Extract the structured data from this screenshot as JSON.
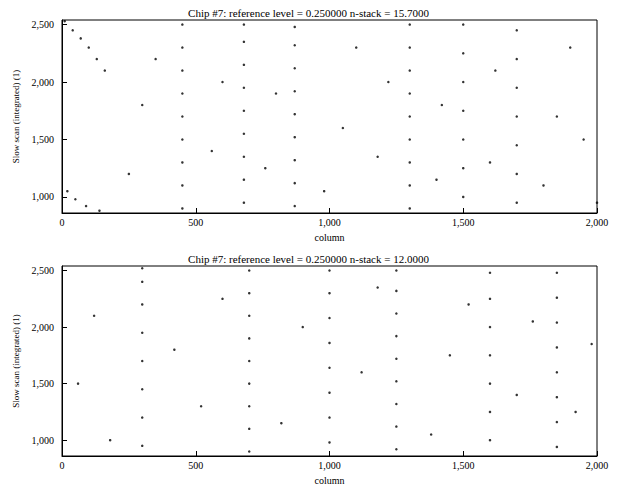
{
  "chart_data": [
    {
      "type": "scatter",
      "title": "Chip #7: reference level = 0.250000 n-stack = 15.7000",
      "x_label": "column",
      "y_label": "Slow scan (integrated) (1)",
      "color": "#000000",
      "marker": "dot",
      "grid": false,
      "xlim": [
        0,
        2000
      ],
      "xticks": [
        0,
        500,
        1000,
        1500,
        2000
      ],
      "ylim": [
        860,
        2540
      ],
      "yticks": [
        1000,
        1500,
        2000,
        2500
      ],
      "x": [
        10,
        40,
        70,
        100,
        130,
        160,
        20,
        50,
        90,
        140,
        450,
        450,
        450,
        450,
        450,
        450,
        450,
        450,
        450,
        680,
        680,
        680,
        680,
        680,
        680,
        680,
        680,
        680,
        870,
        870,
        870,
        870,
        870,
        870,
        870,
        870,
        870,
        1300,
        1300,
        1300,
        1300,
        1300,
        1300,
        1300,
        1300,
        1300,
        1500,
        1500,
        1500,
        1500,
        1500,
        1500,
        1500,
        1700,
        1700,
        1700,
        1700,
        1700,
        1700,
        1700,
        250,
        300,
        350,
        560,
        600,
        760,
        800,
        980,
        1050,
        1100,
        1180,
        1220,
        1400,
        1420,
        1600,
        1620,
        1800,
        1850,
        1900,
        1950,
        2000
      ],
      "values": [
        2530,
        2450,
        2380,
        2300,
        2200,
        2100,
        1050,
        980,
        920,
        880,
        900,
        1100,
        1300,
        1500,
        1700,
        1900,
        2100,
        2300,
        2500,
        950,
        1150,
        1350,
        1550,
        1750,
        1950,
        2150,
        2350,
        2500,
        920,
        1120,
        1320,
        1520,
        1720,
        1920,
        2120,
        2320,
        2480,
        900,
        1100,
        1300,
        1500,
        1700,
        1900,
        2100,
        2300,
        2500,
        1000,
        1250,
        1500,
        1750,
        2000,
        2250,
        2500,
        950,
        1200,
        1450,
        1700,
        1950,
        2200,
        2450,
        1200,
        1800,
        2200,
        1400,
        2000,
        1250,
        1900,
        1050,
        1600,
        2300,
        1350,
        2000,
        1150,
        1800,
        1300,
        2100,
        1100,
        1700,
        2300,
        1500,
        950
      ]
    },
    {
      "type": "scatter",
      "title": "Chip #7: reference level = 0.250000 n-stack = 12.0000",
      "x_label": "column",
      "y_label": "Slow scan (integrated) (1)",
      "color": "#000000",
      "marker": "dot",
      "grid": false,
      "xlim": [
        0,
        2000
      ],
      "xticks": [
        0,
        500,
        1000,
        1500,
        2000
      ],
      "ylim": [
        860,
        2540
      ],
      "yticks": [
        1000,
        1500,
        2000,
        2500
      ],
      "x": [
        300,
        300,
        300,
        300,
        300,
        300,
        300,
        300,
        700,
        700,
        700,
        700,
        700,
        700,
        700,
        700,
        700,
        1000,
        1000,
        1000,
        1000,
        1000,
        1000,
        1000,
        1000,
        1250,
        1250,
        1250,
        1250,
        1250,
        1250,
        1250,
        1250,
        1250,
        1600,
        1600,
        1600,
        1600,
        1600,
        1600,
        1600,
        1850,
        1850,
        1850,
        1850,
        1850,
        1850,
        1850,
        1850,
        60,
        120,
        180,
        420,
        520,
        600,
        820,
        900,
        1120,
        1180,
        1380,
        1450,
        1520,
        1700,
        1760,
        1920,
        1980
      ],
      "values": [
        950,
        1200,
        1450,
        1700,
        1950,
        2200,
        2400,
        2520,
        900,
        1100,
        1300,
        1500,
        1700,
        1900,
        2100,
        2300,
        2500,
        980,
        1200,
        1420,
        1640,
        1860,
        2080,
        2300,
        2500,
        920,
        1120,
        1320,
        1520,
        1720,
        1920,
        2120,
        2320,
        2500,
        1000,
        1250,
        1500,
        1750,
        2000,
        2250,
        2480,
        940,
        1160,
        1380,
        1600,
        1820,
        2040,
        2260,
        2480,
        1500,
        2100,
        1000,
        1800,
        1300,
        2250,
        1150,
        2000,
        1600,
        2350,
        1050,
        1750,
        2200,
        1400,
        2050,
        1250,
        1850
      ]
    }
  ]
}
